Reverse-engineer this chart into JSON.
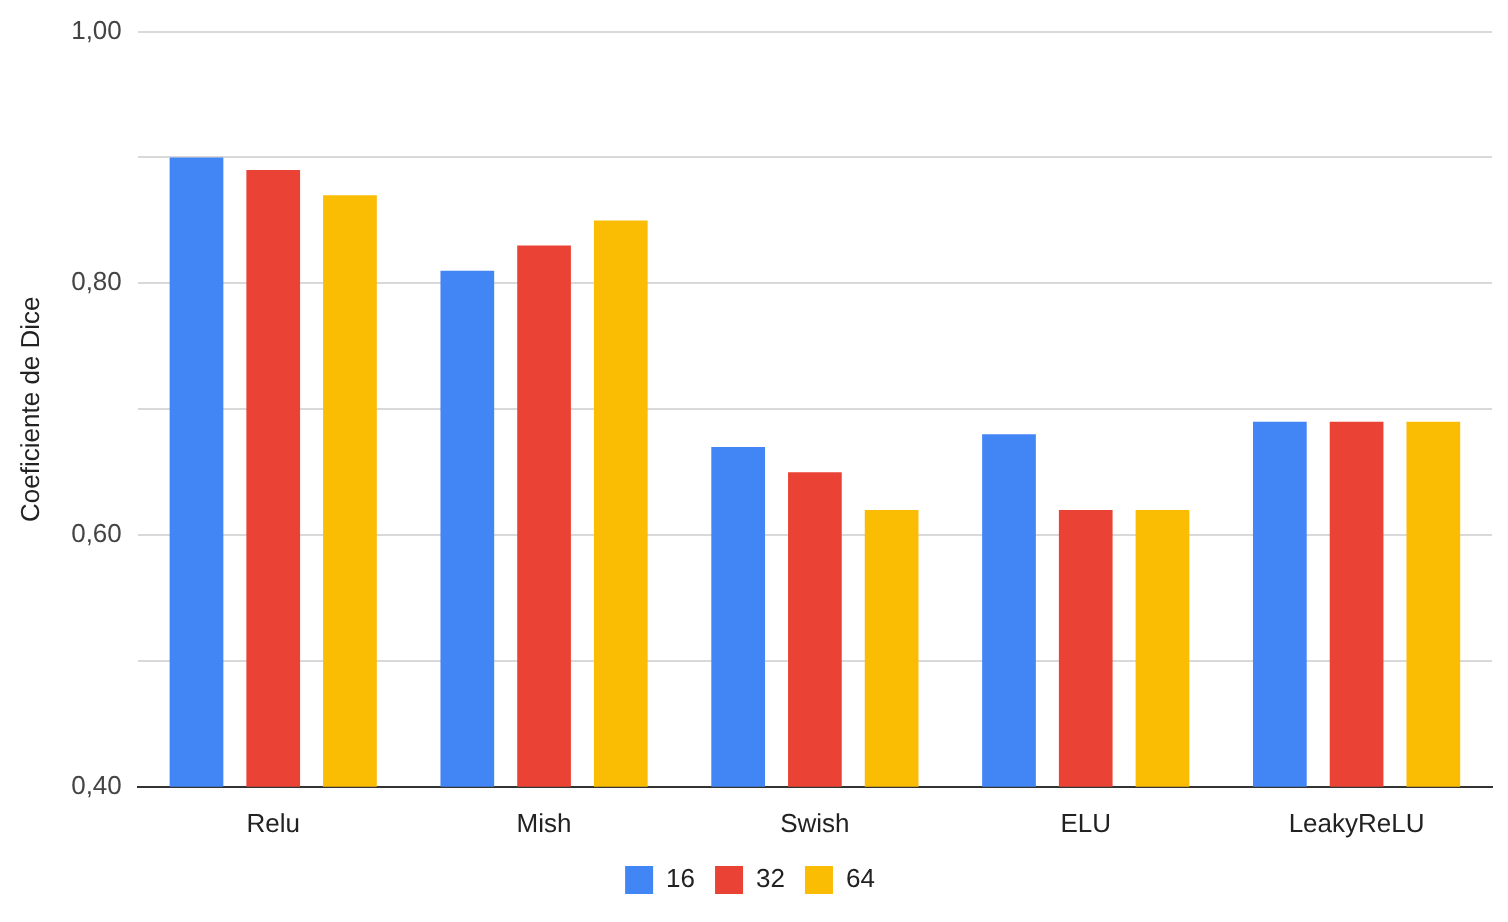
{
  "chart_data": {
    "type": "bar",
    "ylabel": "Coeficiente de Dice",
    "categories": [
      "Relu",
      "Mish",
      "Swish",
      "ELU",
      "LeakyReLU"
    ],
    "series": [
      {
        "name": "16",
        "color": "#4285f4",
        "values": [
          0.9,
          0.81,
          0.67,
          0.68,
          0.69
        ]
      },
      {
        "name": "32",
        "color": "#ea4335",
        "values": [
          0.89,
          0.83,
          0.65,
          0.62,
          0.69
        ]
      },
      {
        "name": "64",
        "color": "#fbbc04",
        "values": [
          0.87,
          0.85,
          0.62,
          0.62,
          0.69
        ]
      }
    ],
    "ylim": [
      0.4,
      1.0
    ],
    "yticks": [
      {
        "value": 0.4,
        "label": "0,40"
      },
      {
        "value": 0.5,
        "label": null
      },
      {
        "value": 0.6,
        "label": "0,60"
      },
      {
        "value": 0.7,
        "label": null
      },
      {
        "value": 0.8,
        "label": "0,80"
      },
      {
        "value": 0.9,
        "label": null
      },
      {
        "value": 1.0,
        "label": "1,00"
      }
    ],
    "grid": "y",
    "legend": "bottom"
  }
}
